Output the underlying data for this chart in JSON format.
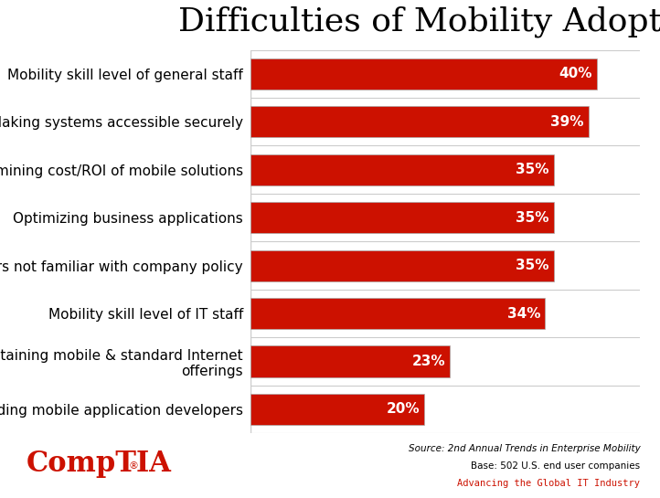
{
  "title": "Difficulties of Mobility Adoption",
  "categories": [
    "Finding mobile application developers",
    "Maintaining mobile & standard Internet\nofferings",
    "Mobility skill level of IT staff",
    "Users not familiar with company policy",
    "Optimizing business applications",
    "Determining cost/ROI of mobile solutions",
    "Making systems accessible securely",
    "Mobility skill level of general staff"
  ],
  "values": [
    20,
    23,
    34,
    35,
    35,
    35,
    39,
    40
  ],
  "bar_color": "#cc1100",
  "label_color": "#ffffff",
  "title_fontsize": 26,
  "bar_label_fontsize": 11,
  "ytick_fontsize": 11,
  "xlim": [
    0,
    45
  ],
  "background_color": "#ffffff",
  "source_line1": "Source: 2nd Annual Trends in Enterprise Mobility",
  "source_line2": "Base: 502 U.S. end user companies",
  "source_line3": "Advancing the Global IT Industry",
  "comptia_text": "CompTIA",
  "bar_edge_color": "#aaaaaa"
}
